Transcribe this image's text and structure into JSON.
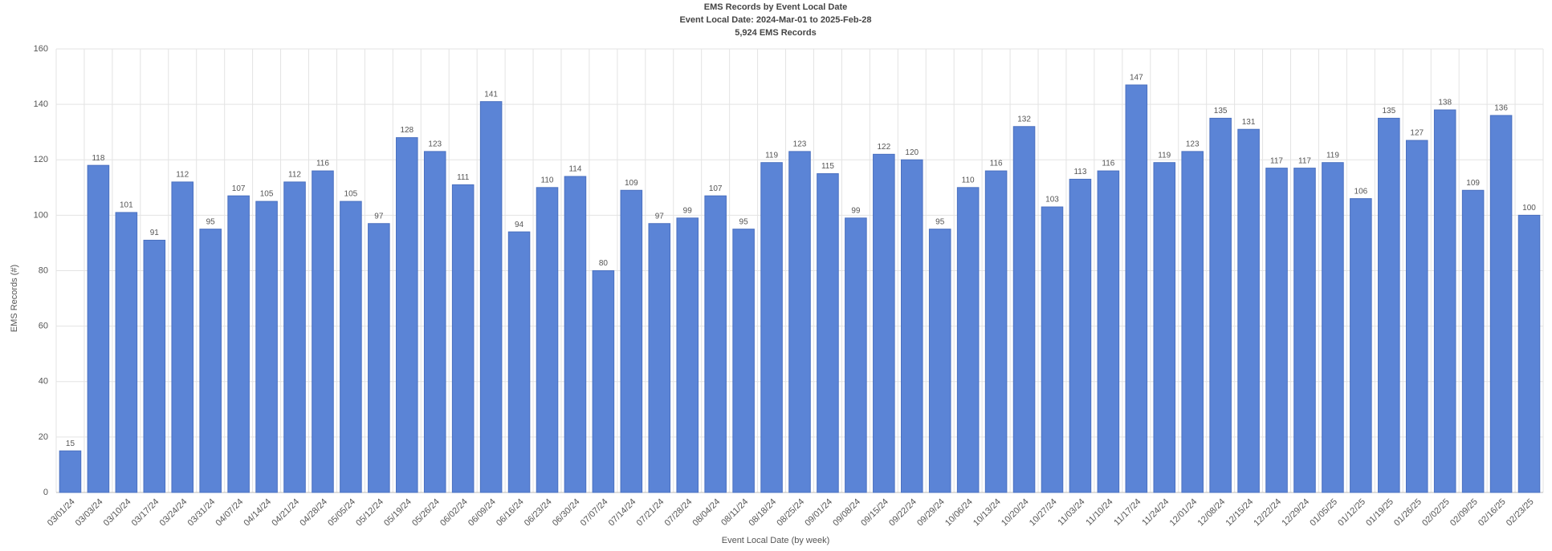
{
  "chart_data": {
    "type": "bar",
    "title": "EMS Records by Event Local Date",
    "subtitle": "Event Local Date: 2024-Mar-01 to 2025-Feb-28",
    "caption": "5,924 EMS Records",
    "x_label": "Event Local Date (by week)",
    "y_label": "EMS Records (#)",
    "categories": [
      "03/01/24",
      "03/03/24",
      "03/10/24",
      "03/17/24",
      "03/24/24",
      "03/31/24",
      "04/07/24",
      "04/14/24",
      "04/21/24",
      "04/28/24",
      "05/05/24",
      "05/12/24",
      "05/19/24",
      "05/26/24",
      "06/02/24",
      "06/09/24",
      "06/16/24",
      "06/23/24",
      "06/30/24",
      "07/07/24",
      "07/14/24",
      "07/21/24",
      "07/28/24",
      "08/04/24",
      "08/11/24",
      "08/18/24",
      "08/25/24",
      "09/01/24",
      "09/08/24",
      "09/15/24",
      "09/22/24",
      "09/29/24",
      "10/06/24",
      "10/13/24",
      "10/20/24",
      "10/27/24",
      "11/03/24",
      "11/10/24",
      "11/17/24",
      "11/24/24",
      "12/01/24",
      "12/08/24",
      "12/15/24",
      "12/22/24",
      "12/29/24",
      "01/05/25",
      "01/12/25",
      "01/19/25",
      "01/26/25",
      "02/02/25",
      "02/09/25",
      "02/16/25",
      "02/23/25"
    ],
    "values": [
      15,
      118,
      101,
      91,
      112,
      95,
      107,
      105,
      112,
      116,
      105,
      97,
      128,
      123,
      111,
      141,
      94,
      110,
      114,
      80,
      109,
      97,
      99,
      107,
      95,
      119,
      123,
      115,
      99,
      122,
      120,
      95,
      110,
      116,
      132,
      103,
      113,
      116,
      147,
      119,
      123,
      135,
      131,
      117,
      117,
      119,
      106,
      135,
      127,
      138,
      109,
      136,
      100
    ],
    "color": "#5b84d6",
    "ylim": [
      0,
      160
    ],
    "yticks": [
      0,
      20,
      40,
      60,
      80,
      100,
      120,
      140,
      160
    ],
    "grid": true
  }
}
